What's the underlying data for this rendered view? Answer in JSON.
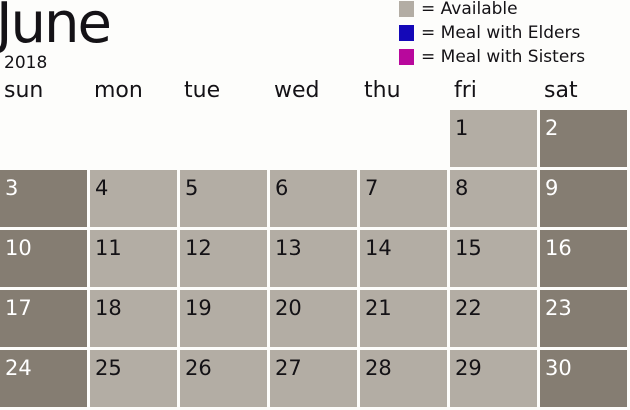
{
  "header": {
    "month": "June",
    "year": "2018"
  },
  "legend": [
    {
      "label": "= Available",
      "color": "#b3ada4"
    },
    {
      "label": "= Meal with Elders",
      "color": "#1408b8"
    },
    {
      "label": "= Meal with Sisters",
      "color": "#b8089c"
    }
  ],
  "weekdays": [
    "sun",
    "mon",
    "tue",
    "wed",
    "thu",
    "fri",
    "sat"
  ],
  "colors": {
    "available": "#b3ada4",
    "weekend": "#857d72"
  },
  "first_weekday_index": 5,
  "days": [
    "1",
    "2",
    "3",
    "4",
    "5",
    "6",
    "7",
    "8",
    "9",
    "10",
    "11",
    "12",
    "13",
    "14",
    "15",
    "16",
    "17",
    "18",
    "19",
    "20",
    "21",
    "22",
    "23",
    "24",
    "25",
    "26",
    "27",
    "28",
    "29",
    "30"
  ]
}
